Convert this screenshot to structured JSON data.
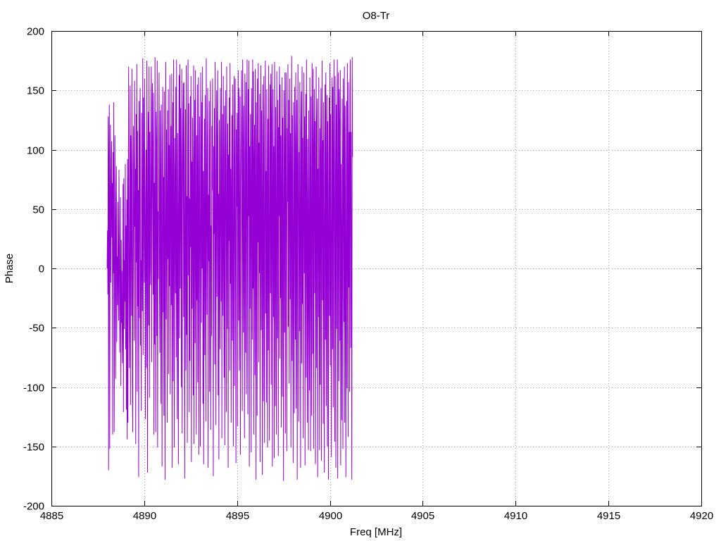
{
  "chart_data": {
    "type": "line",
    "title": "O8-Tr",
    "xlabel": "Freq [MHz]",
    "ylabel": "Phase",
    "xlim": [
      4885,
      4920
    ],
    "ylim": [
      -200,
      200
    ],
    "xticks": [
      4885,
      4890,
      4895,
      4900,
      4905,
      4910,
      4915,
      4920
    ],
    "yticks": [
      -200,
      -150,
      -100,
      -50,
      0,
      50,
      100,
      150,
      200
    ],
    "grid": true,
    "series": [
      {
        "color": "#9400d3",
        "x_start": 4888.0,
        "x_step": 0.02,
        "values": [
          0,
          32,
          -22,
          128,
          -170,
          96,
          138,
          -152,
          54,
          121,
          -12,
          44,
          107,
          26,
          72,
          -140,
          98,
          -4,
          140,
          -138,
          -60,
          112,
          34,
          -93,
          50,
          86,
          -62,
          10,
          -31,
          56,
          -9,
          -44,
          83,
          21,
          -71,
          -18,
          60,
          -99,
          24,
          -46,
          -2,
          -80,
          -54,
          71,
          -121,
          76,
          -51,
          7,
          -28,
          88,
          -68,
          36,
          -119,
          58,
          -144,
          92,
          -130,
          62,
          170,
          -18,
          -84,
          42,
          154,
          -115,
          112,
          64,
          -40,
          168,
          -96,
          -138,
          87,
          120,
          9,
          -61,
          158,
          35,
          84,
          -148,
          130,
          5,
          172,
          -104,
          116,
          -32,
          66,
          -176,
          141,
          -42,
          110,
          152,
          -65,
          7,
          -120,
          131,
          13,
          -36,
          177,
          -73,
          144,
          81,
          -12,
          160,
          27,
          -127,
          59,
          100,
          -84,
          175,
          38,
          -172,
          93,
          132,
          -48,
          170,
          -109,
          115,
          11,
          -14,
          124,
          170,
          -79,
          41,
          156,
          97,
          -22,
          148,
          -140,
          72,
          -64,
          178,
          20,
          -138,
          132,
          102,
          -57,
          175,
          -151,
          48,
          -9,
          108,
          165,
          -19,
          -71,
          133,
          70,
          -114,
          138,
          5,
          -167,
          96,
          153,
          -37,
          77,
          -124,
          149,
          22,
          -178,
          74,
          174,
          -43,
          117,
          52,
          -130,
          133,
          8,
          151,
          -89,
          104,
          -15,
          163,
          -106,
          79,
          120,
          -31,
          164,
          -168,
          58,
          140,
          -95,
          176,
          37,
          -151,
          110,
          68,
          -21,
          153,
          -75,
          176,
          6,
          -127,
          114,
          40,
          -165,
          101,
          163,
          -59,
          172,
          -17,
          135,
          81,
          -100,
          168,
          -139,
          47,
          124,
          156,
          -41,
          157,
          12,
          -177,
          90,
          134,
          -86,
          171,
          -56,
          61,
          -147,
          103,
          176,
          -6,
          139,
          -121,
          59,
          -78,
          145,
          18,
          162,
          -163,
          90,
          -34,
          127,
          53,
          -107,
          171,
          -148,
          77,
          142,
          -63,
          167,
          29,
          -140,
          112,
          -27,
          155,
          -96,
          68,
          161,
          -157,
          43,
          128,
          -8,
          -150,
          165,
          99,
          -46,
          140,
          0,
          170,
          -114,
          82,
          -165,
          55,
          126,
          -73,
          146,
          21,
          -129,
          177,
          73,
          -39,
          110,
          152,
          -168,
          62,
          6,
          141,
          -104,
          95,
          158,
          -136,
          36,
          -57,
          120,
          66,
          160,
          -3,
          -175,
          103,
          29,
          135,
          -81,
          174,
          45,
          -132,
          79,
          150,
          -24,
          102,
          167,
          -107,
          63,
          -161,
          125,
          11,
          -68,
          152,
          88,
          -28,
          174,
          -143,
          57,
          130,
          -40,
          162,
          19,
          -92,
          137,
          -149,
          92,
          150,
          6,
          -121,
          170,
          68,
          -51,
          122,
          -168,
          96,
          23,
          144,
          -86,
          173,
          -13,
          84,
          -130,
          64,
          129,
          -61,
          155,
          4,
          -150,
          108,
          162,
          -99,
          75,
          160,
          -27,
          -164,
          117,
          52,
          131,
          -133,
          79,
          167,
          -44,
          152,
          -86,
          16,
          145,
          -157,
          71,
          118,
          167,
          -11,
          -120,
          176,
          106,
          -54,
          137,
          28,
          -143,
          164,
          82,
          -71,
          157,
          -106,
          71,
          176,
          2,
          -123,
          151,
          44,
          175,
          -167,
          103,
          -34,
          130,
          60,
          -155,
          152,
          111,
          -60,
          176,
          -17,
          166,
          -140,
          88,
          121,
          -90,
          168,
          47,
          -178,
          140,
          80,
          -124,
          160,
          22,
          173,
          -79,
          106,
          -4,
          147,
          -163,
          64,
          171,
          -52,
          133,
          37,
          -174,
          155,
          95,
          -112,
          162,
          4,
          -147,
          123,
          175,
          -38,
          82,
          -113,
          151,
          61,
          -151,
          126,
          -69,
          171,
          12,
          -145,
          98,
          155,
          -21,
          164,
          -98,
          124,
          172,
          -167,
          43,
          151,
          -41,
          103,
          -160,
          174,
          72,
          -116,
          136,
          21,
          -140,
          166,
          93,
          -59,
          142,
          -158,
          119,
          44,
          170,
          -76,
          155,
          -25,
          112,
          -134,
          61,
          161,
          -108,
          127,
          24,
          -179,
          150,
          79,
          -54,
          165,
          -139,
          104,
          165,
          8,
          -154,
          118,
          56,
          172,
          -49,
          142,
          -97,
          73,
          160,
          -26,
          114,
          -151,
          82,
          179,
          -78,
          129,
          -3,
          -164,
          140,
          68,
          -122,
          153,
          98,
          -60,
          165,
          -118,
          85,
          142,
          -178,
          76,
          172,
          27,
          -129,
          98,
          -53,
          157,
          40,
          -168,
          118,
          149,
          -80,
          170,
          -30,
          110,
          -143,
          59,
          165,
          -4,
          128,
          -166,
          88,
          147,
          -92,
          176,
          52,
          -130,
          109,
          30,
          -153,
          133,
          -2,
          -103,
          161,
          76,
          -154,
          145,
          16,
          -124,
          173,
          98,
          -72,
          168,
          -152,
          90,
          151,
          -21,
          124,
          -165,
          58,
          170,
          -84,
          120,
          143,
          -176,
          84,
          -41,
          161,
          36,
          -153,
          118,
          -98,
          94,
          152,
          -162,
          73,
          175,
          -27,
          108,
          -131,
          140,
          19,
          -172,
          98,
          155,
          -60,
          165,
          -116,
          62,
          146,
          -150,
          124,
          30,
          -178,
          96,
          144,
          -40,
          173,
          -82,
          130,
          4,
          -159,
          110,
          161,
          -68,
          153,
          -117,
          90,
          176,
          -9,
          -146,
          162,
          76,
          -168,
          138,
          -51,
          128,
          176,
          -177,
          54,
          165,
          -95,
          151,
          120,
          -61,
          167,
          -166,
          88,
          12,
          -128,
          143,
          70,
          -152,
          160,
          108,
          -45,
          170,
          -130,
          137,
          8,
          -176,
          80,
          141,
          -101,
          173,
          55,
          -142,
          157,
          -16,
          115,
          -104,
          148,
          176,
          -67,
          115,
          0,
          -178,
          178,
          94
        ]
      }
    ]
  }
}
